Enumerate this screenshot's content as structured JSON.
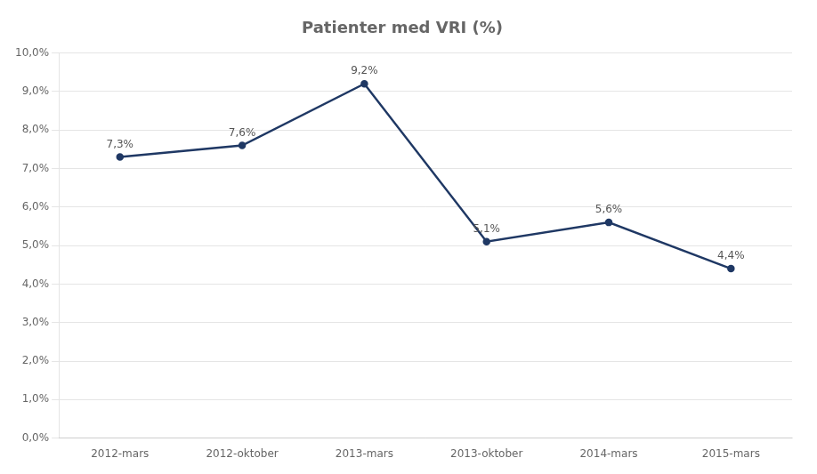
{
  "chart_data": {
    "type": "line",
    "title": "Patienter med VRI (%)",
    "categories": [
      "2012-mars",
      "2012-oktober",
      "2013-mars",
      "2013-oktober",
      "2014-mars",
      "2015-mars"
    ],
    "values": [
      7.3,
      7.6,
      9.2,
      5.1,
      5.6,
      4.4
    ],
    "value_labels": [
      "7,3%",
      "7,6%",
      "9,2%",
      "5,1%",
      "5,6%",
      "4,4%"
    ],
    "color": "#1F3864",
    "ylim": [
      0.0,
      10.0
    ],
    "yticks": [
      {
        "value": 0.0,
        "label": "0,0%"
      },
      {
        "value": 1.0,
        "label": "1,0%"
      },
      {
        "value": 2.0,
        "label": "2,0%"
      },
      {
        "value": 3.0,
        "label": "3,0%"
      },
      {
        "value": 4.0,
        "label": "4,0%"
      },
      {
        "value": 5.0,
        "label": "5,0%"
      },
      {
        "value": 6.0,
        "label": "6,0%"
      },
      {
        "value": 7.0,
        "label": "7,0%"
      },
      {
        "value": 8.0,
        "label": "8,0%"
      },
      {
        "value": 9.0,
        "label": "9,0%"
      },
      {
        "value": 10.0,
        "label": "10,0%"
      }
    ],
    "grid": true,
    "data_labels": true
  }
}
